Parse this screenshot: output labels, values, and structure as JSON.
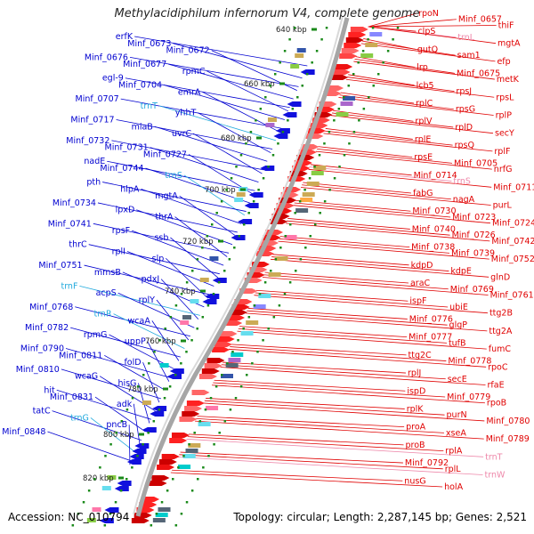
{
  "title": "Methylacidiphilum infernorum V4, complete genome",
  "footer": {
    "accession": "Accession: NC_010794",
    "summary": "Topology: circular; Length: 2,287,145 bp; Genes: 2,521"
  },
  "colors": {
    "left_genes": "#0000d0",
    "right_genes": "#e00000",
    "rna_left": "#22aadd",
    "rna_right": "#ee88aa",
    "backbone": "#a6a6a6",
    "ticks": "#1a8a1a"
  },
  "kbp_ticks": [
    "640 kbp",
    "660 kbp",
    "680 kbp",
    "700 kbp",
    "720 kbp",
    "740 kbp",
    "760 kbp",
    "780 kbp",
    "800 kbp",
    "820 kbp"
  ],
  "left_labels": [
    {
      "text": "erfK",
      "type": "gene"
    },
    {
      "text": "Minf_0673",
      "type": "gene"
    },
    {
      "text": "Minf_0672",
      "type": "gene"
    },
    {
      "text": "Minf_0676",
      "type": "gene"
    },
    {
      "text": "Minf_0677",
      "type": "gene"
    },
    {
      "text": "rpmC",
      "type": "gene"
    },
    {
      "text": "egl-9",
      "type": "gene"
    },
    {
      "text": "Minf_0704",
      "type": "gene"
    },
    {
      "text": "emrA",
      "type": "gene"
    },
    {
      "text": "Minf_0707",
      "type": "gene"
    },
    {
      "text": "trnT",
      "type": "rna"
    },
    {
      "text": "yhhT",
      "type": "gene"
    },
    {
      "text": "Minf_0717",
      "type": "gene"
    },
    {
      "text": "miaB",
      "type": "gene"
    },
    {
      "text": "uvrC",
      "type": "gene"
    },
    {
      "text": "Minf_0732",
      "type": "gene"
    },
    {
      "text": "Minf_0731",
      "type": "gene"
    },
    {
      "text": "Minf_0727",
      "type": "gene"
    },
    {
      "text": "nadE",
      "type": "gene"
    },
    {
      "text": "Minf_0744",
      "type": "gene"
    },
    {
      "text": "trnS",
      "type": "rna"
    },
    {
      "text": "pth",
      "type": "gene"
    },
    {
      "text": "hlpA",
      "type": "gene"
    },
    {
      "text": "mgtA",
      "type": "gene"
    },
    {
      "text": "Minf_0734",
      "type": "gene"
    },
    {
      "text": "lpxD",
      "type": "gene"
    },
    {
      "text": "thrA",
      "type": "gene"
    },
    {
      "text": "Minf_0741",
      "type": "gene"
    },
    {
      "text": "rpsF",
      "type": "gene"
    },
    {
      "text": "ssb",
      "type": "gene"
    },
    {
      "text": "thrC",
      "type": "gene"
    },
    {
      "text": "rplI",
      "type": "gene"
    },
    {
      "text": "slp",
      "type": "gene"
    },
    {
      "text": "Minf_0751",
      "type": "gene"
    },
    {
      "text": "mmsB",
      "type": "gene"
    },
    {
      "text": "pdxJ",
      "type": "gene"
    },
    {
      "text": "trnF",
      "type": "rna"
    },
    {
      "text": "acpS",
      "type": "gene"
    },
    {
      "text": "rplY",
      "type": "gene"
    },
    {
      "text": "Minf_0768",
      "type": "gene"
    },
    {
      "text": "trnR",
      "type": "rna"
    },
    {
      "text": "wcaA",
      "type": "gene"
    },
    {
      "text": "Minf_0782",
      "type": "gene"
    },
    {
      "text": "rpmG",
      "type": "gene"
    },
    {
      "text": "uppP",
      "type": "gene"
    },
    {
      "text": "Minf_0790",
      "type": "gene"
    },
    {
      "text": "Minf_0811",
      "type": "gene"
    },
    {
      "text": "folD",
      "type": "gene"
    },
    {
      "text": "Minf_0810",
      "type": "gene"
    },
    {
      "text": "wcaG",
      "type": "gene"
    },
    {
      "text": "hisG",
      "type": "gene"
    },
    {
      "text": "hit",
      "type": "gene"
    },
    {
      "text": "Minf_0831",
      "type": "gene"
    },
    {
      "text": "adk",
      "type": "gene"
    },
    {
      "text": "tatC",
      "type": "gene"
    },
    {
      "text": "trnG",
      "type": "rna"
    },
    {
      "text": "pncB",
      "type": "gene"
    },
    {
      "text": "Minf_0848",
      "type": "gene"
    }
  ],
  "right_labels": [
    {
      "text": "rpoN",
      "type": "gene"
    },
    {
      "text": "Minf_0657",
      "type": "gene"
    },
    {
      "text": "thiF",
      "type": "gene"
    },
    {
      "text": "clpS",
      "type": "gene"
    },
    {
      "text": "trnL",
      "type": "rna"
    },
    {
      "text": "mgtA",
      "type": "gene"
    },
    {
      "text": "gutQ",
      "type": "gene"
    },
    {
      "text": "sam1",
      "type": "gene"
    },
    {
      "text": "efp",
      "type": "gene"
    },
    {
      "text": "lrp",
      "type": "gene"
    },
    {
      "text": "Minf_0675",
      "type": "gene"
    },
    {
      "text": "metK",
      "type": "gene"
    },
    {
      "text": "lcb5",
      "type": "gene"
    },
    {
      "text": "rpsJ",
      "type": "gene"
    },
    {
      "text": "rpsL",
      "type": "gene"
    },
    {
      "text": "rplC",
      "type": "gene"
    },
    {
      "text": "rpsG",
      "type": "gene"
    },
    {
      "text": "rplP",
      "type": "gene"
    },
    {
      "text": "rplV",
      "type": "gene"
    },
    {
      "text": "rplD",
      "type": "gene"
    },
    {
      "text": "secY",
      "type": "gene"
    },
    {
      "text": "rplE",
      "type": "gene"
    },
    {
      "text": "rpsQ",
      "type": "gene"
    },
    {
      "text": "rplF",
      "type": "gene"
    },
    {
      "text": "rpsE",
      "type": "gene"
    },
    {
      "text": "Minf_0705",
      "type": "gene"
    },
    {
      "text": "nrfG",
      "type": "gene"
    },
    {
      "text": "Minf_0714",
      "type": "gene"
    },
    {
      "text": "trnS",
      "type": "rna"
    },
    {
      "text": "Minf_0711",
      "type": "gene"
    },
    {
      "text": "fabG",
      "type": "gene"
    },
    {
      "text": "nagA",
      "type": "gene"
    },
    {
      "text": "purL",
      "type": "gene"
    },
    {
      "text": "Minf_0730",
      "type": "gene"
    },
    {
      "text": "Minf_0723",
      "type": "gene"
    },
    {
      "text": "Minf_0724",
      "type": "gene"
    },
    {
      "text": "Minf_0740",
      "type": "gene"
    },
    {
      "text": "Minf_0726",
      "type": "gene"
    },
    {
      "text": "Minf_0742",
      "type": "gene"
    },
    {
      "text": "Minf_0738",
      "type": "gene"
    },
    {
      "text": "Minf_0739",
      "type": "gene"
    },
    {
      "text": "Minf_0752",
      "type": "gene"
    },
    {
      "text": "kdpD",
      "type": "gene"
    },
    {
      "text": "kdpE",
      "type": "gene"
    },
    {
      "text": "glnD",
      "type": "gene"
    },
    {
      "text": "araC",
      "type": "gene"
    },
    {
      "text": "Minf_0769",
      "type": "gene"
    },
    {
      "text": "Minf_0761",
      "type": "gene"
    },
    {
      "text": "ispF",
      "type": "gene"
    },
    {
      "text": "ubiE",
      "type": "gene"
    },
    {
      "text": "ttg2B",
      "type": "gene"
    },
    {
      "text": "Minf_0776",
      "type": "gene"
    },
    {
      "text": "glgP",
      "type": "gene"
    },
    {
      "text": "ttg2A",
      "type": "gene"
    },
    {
      "text": "Minf_0777",
      "type": "gene"
    },
    {
      "text": "tufB",
      "type": "gene"
    },
    {
      "text": "fumC",
      "type": "gene"
    },
    {
      "text": "ttg2C",
      "type": "gene"
    },
    {
      "text": "Minf_0778",
      "type": "gene"
    },
    {
      "text": "rpoC",
      "type": "gene"
    },
    {
      "text": "rplJ",
      "type": "gene"
    },
    {
      "text": "secE",
      "type": "gene"
    },
    {
      "text": "rfaE",
      "type": "gene"
    },
    {
      "text": "ispD",
      "type": "gene"
    },
    {
      "text": "Minf_0779",
      "type": "gene"
    },
    {
      "text": "rpoB",
      "type": "gene"
    },
    {
      "text": "rplK",
      "type": "gene"
    },
    {
      "text": "purN",
      "type": "gene"
    },
    {
      "text": "Minf_0780",
      "type": "gene"
    },
    {
      "text": "proA",
      "type": "gene"
    },
    {
      "text": "xseA",
      "type": "gene"
    },
    {
      "text": "Minf_0789",
      "type": "gene"
    },
    {
      "text": "proB",
      "type": "gene"
    },
    {
      "text": "rplA",
      "type": "gene"
    },
    {
      "text": "trnT",
      "type": "rna"
    },
    {
      "text": "Minf_0792",
      "type": "gene"
    },
    {
      "text": "rplL",
      "type": "gene"
    },
    {
      "text": "trnW",
      "type": "rna"
    },
    {
      "text": "nusG",
      "type": "gene"
    },
    {
      "text": "holA",
      "type": "gene"
    }
  ]
}
